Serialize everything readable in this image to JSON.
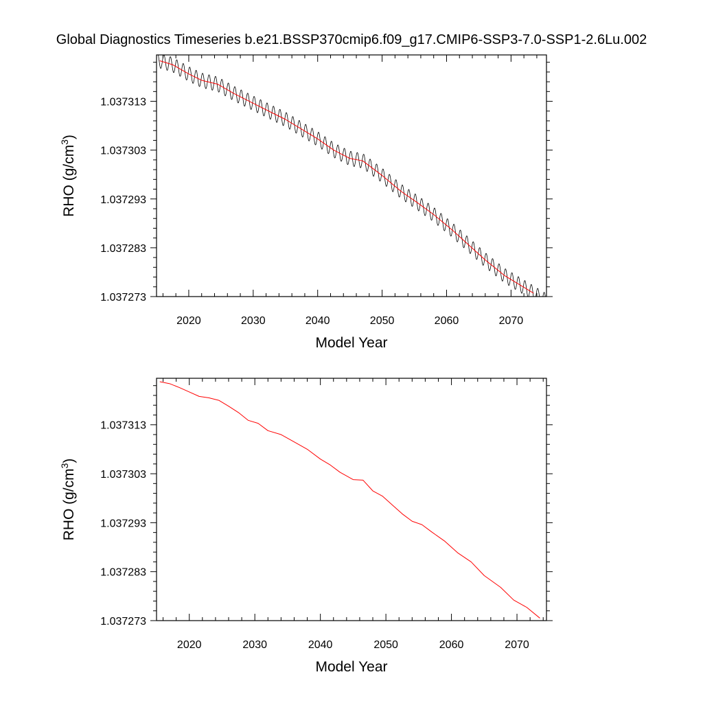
{
  "title": "Global Diagnostics Timeseries b.e21.BSSP370cmip6.f09_g17.CMIP6-SSP3-7.0-SSP1-2.6Lu.002",
  "colors": {
    "monthly": "#000000",
    "annual": "#ff0000",
    "frame": "#000000",
    "background": "#ffffff"
  },
  "chart_data": [
    {
      "type": "line",
      "xlabel": "Model Year",
      "ylabel": "RHO (g/cm",
      "ylabel_sup": "3",
      "ylabel_close": ")",
      "xlim": [
        2015,
        2075.5
      ],
      "ylim": [
        1.037273,
        1.0373225
      ],
      "xticks": [
        2020,
        2030,
        2040,
        2050,
        2060,
        2070
      ],
      "xtick_labels": [
        "2020",
        "2030",
        "2040",
        "2050",
        "2060",
        "2070"
      ],
      "yticks": [
        1.037273,
        1.037283,
        1.037293,
        1.037303,
        1.037313
      ],
      "ytick_labels": [
        "1.037273",
        "1.037283",
        "1.037293",
        "1.037303",
        "1.037313"
      ],
      "grid": false,
      "series": [
        {
          "kind": "monthly",
          "color": "#000000",
          "seasonal_amplitude": 1.5e-06,
          "x_start": 2015,
          "x_end": 2075.5
        },
        {
          "kind": "annual",
          "color": "#ff0000",
          "x": [
            2015.5,
            2017.5,
            2020,
            2022,
            2024.5,
            2027,
            2030,
            2033,
            2035,
            2037.5,
            2040,
            2042.5,
            2045,
            2047,
            2050,
            2053,
            2055.5,
            2058,
            2061,
            2063.5,
            2066,
            2069,
            2071.5,
            2073.5
          ],
          "y": [
            1.0373213,
            1.0373205,
            1.0373186,
            1.0373173,
            1.0373165,
            1.0373146,
            1.0373126,
            1.0373106,
            1.0373093,
            1.0373073,
            1.0373053,
            1.037303,
            1.0373013,
            1.0373008,
            1.0372978,
            1.0372945,
            1.0372922,
            1.0372898,
            1.0372865,
            1.0372835,
            1.0372805,
            1.0372773,
            1.0372753,
            1.0372737
          ]
        }
      ]
    },
    {
      "type": "line",
      "xlabel": "Model Year",
      "ylabel": "RHO (g/cm",
      "ylabel_sup": "3",
      "ylabel_close": ")",
      "xlim": [
        2015,
        2074.5
      ],
      "ylim": [
        1.037273,
        1.0373225
      ],
      "xticks": [
        2020,
        2030,
        2040,
        2050,
        2060,
        2070
      ],
      "xtick_labels": [
        "2020",
        "2030",
        "2040",
        "2050",
        "2060",
        "2070"
      ],
      "yticks": [
        1.037273,
        1.037283,
        1.037293,
        1.037303,
        1.037313
      ],
      "ytick_labels": [
        "1.037273",
        "1.037283",
        "1.037293",
        "1.037303",
        "1.037313"
      ],
      "grid": false,
      "series": [
        {
          "kind": "annual",
          "color": "#ff0000",
          "x": [
            2015.5,
            2017,
            2018.5,
            2020,
            2021.5,
            2023,
            2024.5,
            2026,
            2027.5,
            2029,
            2030.5,
            2032,
            2034,
            2036,
            2038,
            2040,
            2041.5,
            2043,
            2045,
            2046.5,
            2048,
            2049.5,
            2051,
            2052.5,
            2054,
            2055.5,
            2057,
            2059,
            2061,
            2063,
            2065,
            2067.5,
            2069.5,
            2071.5,
            2073.5
          ],
          "y": [
            1.0373218,
            1.0373214,
            1.0373206,
            1.0373197,
            1.0373188,
            1.0373185,
            1.037318,
            1.0373168,
            1.0373155,
            1.0373139,
            1.0373133,
            1.0373118,
            1.037311,
            1.0373095,
            1.037308,
            1.037306,
            1.0373048,
            1.0373033,
            1.0373018,
            1.0373017,
            1.0372995,
            1.0372984,
            1.0372966,
            1.0372948,
            1.0372933,
            1.0372926,
            1.0372911,
            1.0372892,
            1.0372868,
            1.037285,
            1.0372822,
            1.0372798,
            1.0372772,
            1.0372757,
            1.0372735
          ]
        }
      ]
    }
  ]
}
